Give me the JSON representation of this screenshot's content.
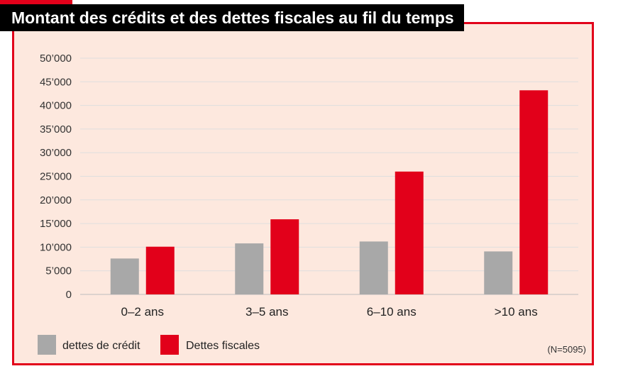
{
  "title": "Montant des crédits et des dettes fiscales au fil du temps",
  "note": "(N=5095)",
  "colors": {
    "credit": "#a8a8a8",
    "fiscal": "#e2001a",
    "frame": "#e2001a",
    "background": "#fde8de"
  },
  "chart_data": {
    "type": "bar",
    "title": "Montant des crédits et des dettes fiscales au fil du temps",
    "categories": [
      "0–2 ans",
      "3–5 ans",
      "6–10 ans",
      ">10 ans"
    ],
    "series": [
      {
        "name": "dettes de crédit",
        "values": [
          7600,
          10800,
          11200,
          9100
        ]
      },
      {
        "name": "Dettes fiscales",
        "values": [
          10100,
          15900,
          26000,
          43200
        ]
      }
    ],
    "yticks": [
      "0",
      "5’000",
      "10’000",
      "15’000",
      "20’000",
      "25’000",
      "30’000",
      "35’000",
      "40’000",
      "45’000",
      "50’000"
    ],
    "ylim": [
      0,
      50000
    ],
    "grid": true,
    "legend": "bottom-left"
  }
}
